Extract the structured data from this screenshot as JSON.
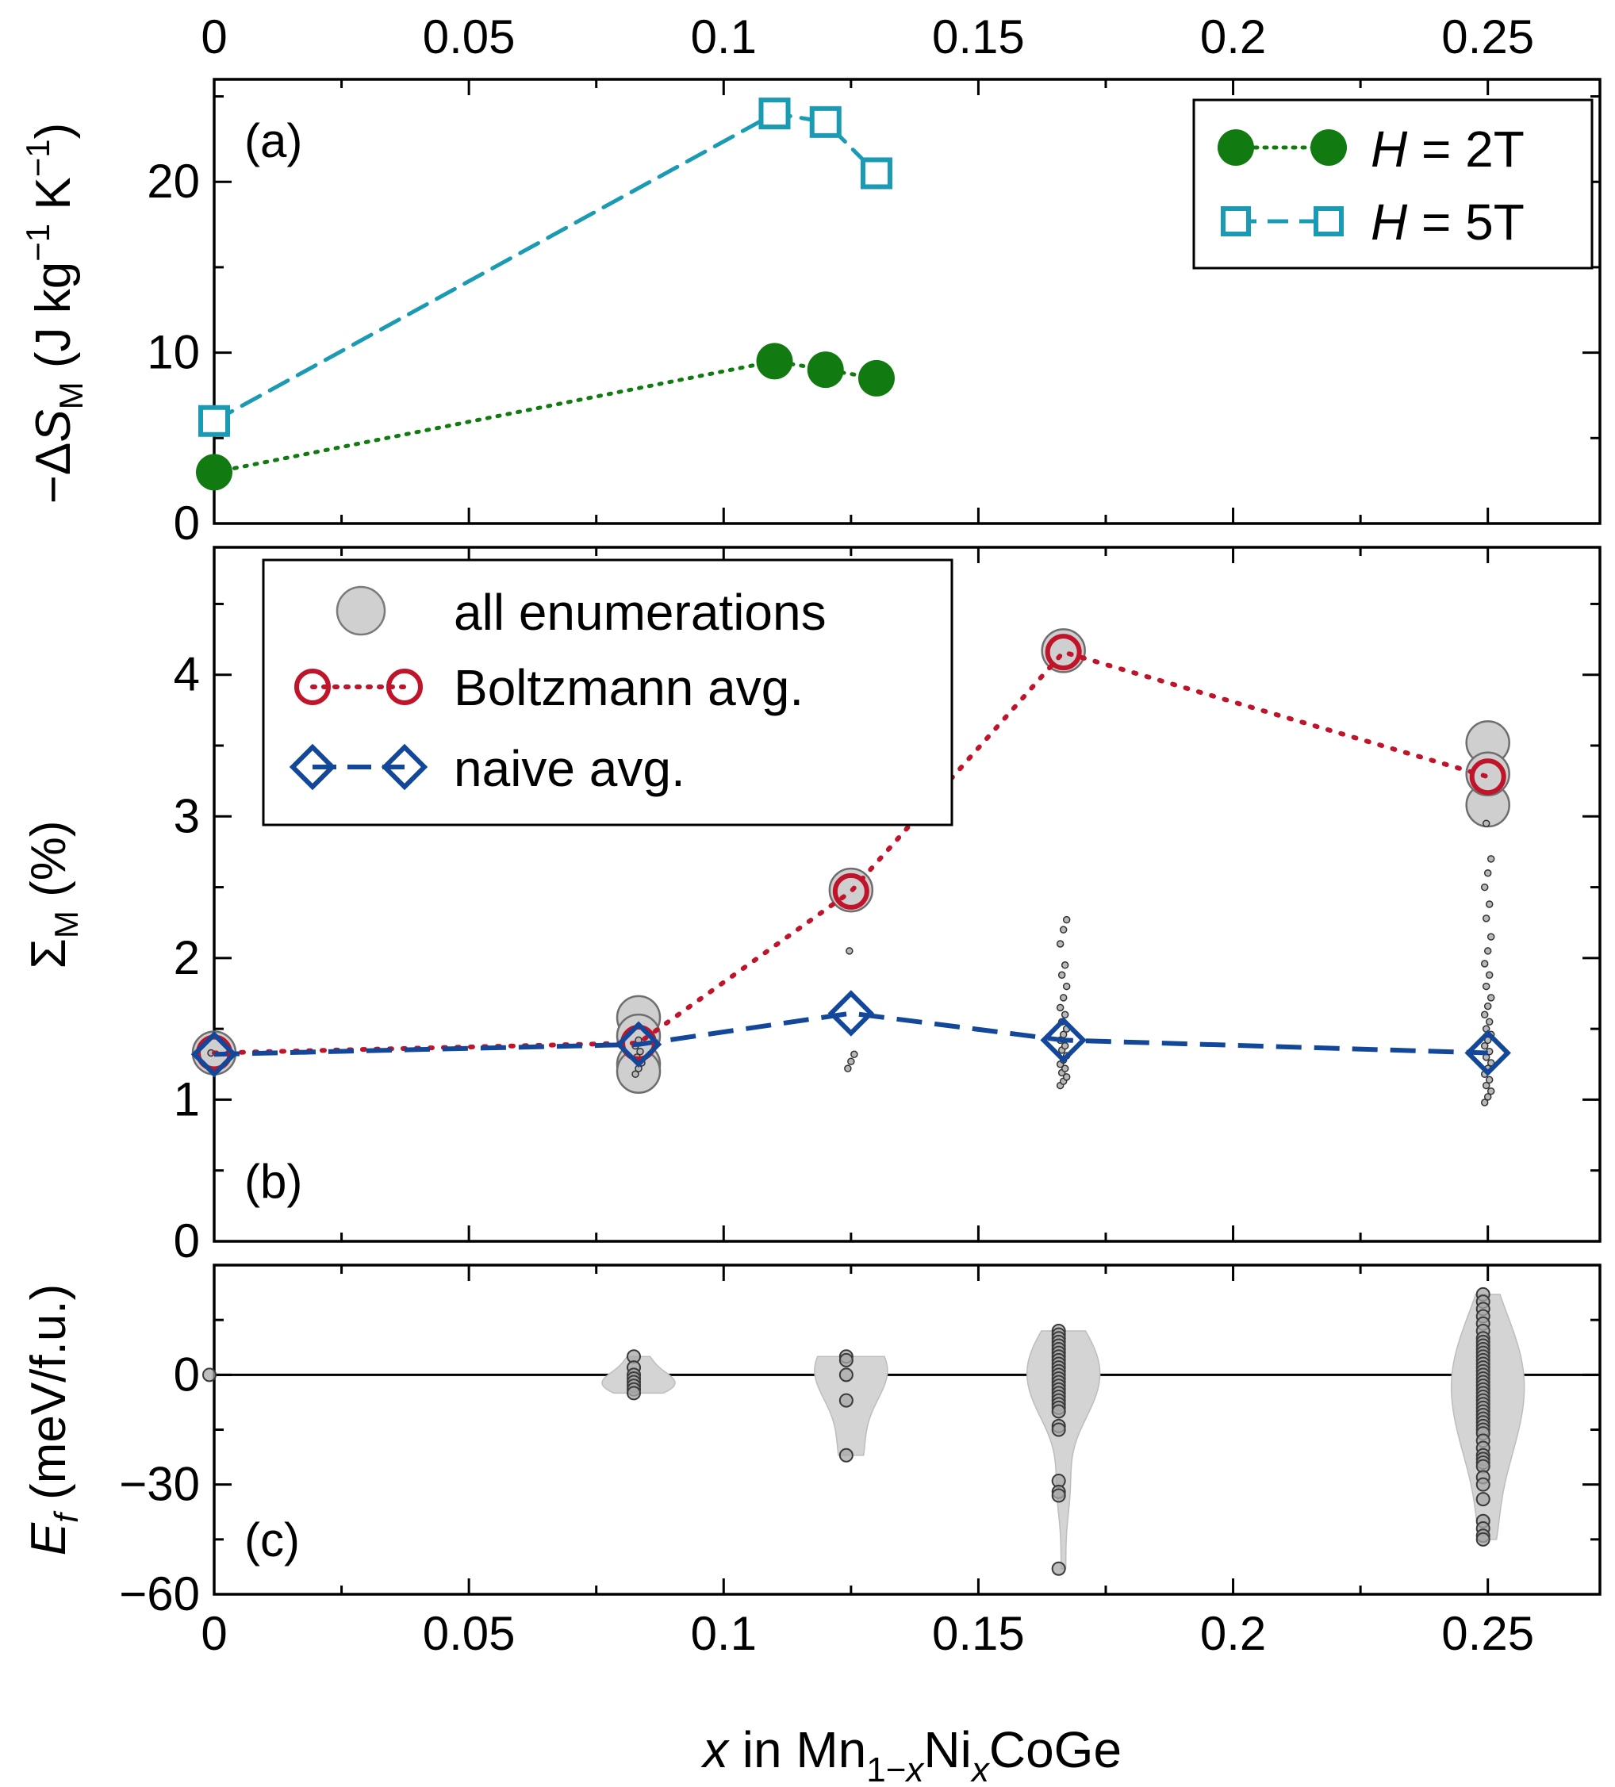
{
  "figure": {
    "x_label": "x in Mn1−xNixCoGe",
    "x_ticks": [
      "0",
      "0.05",
      "0.1",
      "0.15",
      "0.2",
      "0.25"
    ]
  },
  "chart_data": [
    {
      "type": "line",
      "panel_label": "(a)",
      "ylabel": "−ΔS_M (J kg^−1 K^−1)",
      "xlim": [
        0,
        0.272
      ],
      "ylim": [
        0,
        26
      ],
      "yticks": [
        "0",
        "10",
        "20"
      ],
      "legend": "top-right",
      "series": [
        {
          "name": "H = 2T",
          "color": "#117a11",
          "marker": "filled-circle",
          "line": "dotted",
          "x": [
            0,
            0.11,
            0.12,
            0.13
          ],
          "y": [
            3.0,
            9.5,
            9.0,
            8.5
          ]
        },
        {
          "name": "H = 5T",
          "color": "#1a9bb3",
          "marker": "open-square",
          "line": "dashed",
          "x": [
            0,
            0.11,
            0.12,
            0.13
          ],
          "y": [
            6.0,
            24.0,
            23.5,
            20.5
          ]
        }
      ]
    },
    {
      "type": "scatter",
      "panel_label": "(b)",
      "ylabel": "Σ_M (%)",
      "xlim": [
        0,
        0.272
      ],
      "ylim": [
        0,
        4.9
      ],
      "yticks": [
        "0",
        "1",
        "2",
        "3",
        "4"
      ],
      "legend": "top-left",
      "legend_labels": [
        "all enumerations",
        "Boltzmann avg.",
        "naive avg."
      ],
      "enumerations": [
        {
          "x": 0,
          "values": [
            1.33
          ],
          "large": [
            1.33
          ]
        },
        {
          "x": 0.0833,
          "values": [
            1.18,
            1.22,
            1.26,
            1.3,
            1.34,
            1.38,
            1.42
          ],
          "large": [
            1.58,
            1.25,
            1.2,
            1.45
          ]
        },
        {
          "x": 0.125,
          "values": [
            1.22,
            1.27,
            1.32,
            2.05
          ],
          "large": [
            2.48
          ]
        },
        {
          "x": 0.1667,
          "values": [
            1.1,
            1.13,
            1.16,
            1.19,
            1.22,
            1.25,
            1.28,
            1.31,
            1.35,
            1.38,
            1.42,
            1.46,
            1.5,
            1.55,
            1.6,
            1.65,
            1.72,
            1.8,
            1.88,
            1.95,
            2.1,
            2.2,
            2.27
          ],
          "large": [
            4.17
          ]
        },
        {
          "x": 0.25,
          "values": [
            0.98,
            1.02,
            1.06,
            1.1,
            1.14,
            1.18,
            1.22,
            1.26,
            1.3,
            1.34,
            1.38,
            1.42,
            1.46,
            1.5,
            1.55,
            1.6,
            1.66,
            1.72,
            1.8,
            1.88,
            1.96,
            2.05,
            2.15,
            2.28,
            2.38,
            2.5,
            2.6,
            2.7,
            2.95
          ],
          "large": [
            3.52,
            3.08,
            3.3
          ]
        }
      ],
      "series": [
        {
          "name": "Boltzmann avg.",
          "color": "#c0142a",
          "marker": "open-circle",
          "line": "dotted",
          "x": [
            0,
            0.0833,
            0.125,
            0.1667,
            0.25
          ],
          "y": [
            1.33,
            1.4,
            2.47,
            4.16,
            3.28
          ]
        },
        {
          "name": "naive avg.",
          "color": "#12479a",
          "marker": "open-diamond",
          "line": "dashed",
          "x": [
            0,
            0.0833,
            0.125,
            0.1667,
            0.25
          ],
          "y": [
            1.32,
            1.39,
            1.61,
            1.42,
            1.33
          ]
        }
      ]
    },
    {
      "type": "scatter",
      "panel_label": "(c)",
      "ylabel": "E_f (meV/f.u.)",
      "xlim": [
        0,
        0.272
      ],
      "ylim": [
        -60,
        30
      ],
      "yticks": [
        "−60",
        "−30",
        "0"
      ],
      "reference_line_y": 0,
      "violins": [
        {
          "x": 0,
          "values": [
            0
          ]
        },
        {
          "x": 0.0833,
          "values": [
            5,
            2,
            0,
            -1,
            -2,
            -3,
            -4,
            -5
          ]
        },
        {
          "x": 0.125,
          "values": [
            5,
            4,
            0,
            -7,
            -22
          ]
        },
        {
          "x": 0.1667,
          "values": [
            12,
            11,
            10,
            9,
            8,
            7,
            6,
            5,
            4,
            3,
            2,
            1,
            0,
            -1,
            -2,
            -3,
            -4,
            -5,
            -6,
            -7,
            -8,
            -9,
            -10,
            -14,
            -15,
            -29,
            -32,
            -33,
            -53
          ]
        },
        {
          "x": 0.25,
          "values": [
            22,
            20,
            18,
            16,
            14,
            12,
            10,
            9,
            8,
            7,
            6,
            5,
            4,
            3,
            2,
            1,
            0,
            -1,
            -2,
            -3,
            -4,
            -5,
            -6,
            -7,
            -8,
            -9,
            -10,
            -11,
            -12,
            -13,
            -14,
            -15,
            -16,
            -18,
            -20,
            -22,
            -23,
            -24,
            -25,
            -28,
            -30,
            -34,
            -40,
            -42,
            -44,
            -45
          ]
        }
      ]
    }
  ]
}
